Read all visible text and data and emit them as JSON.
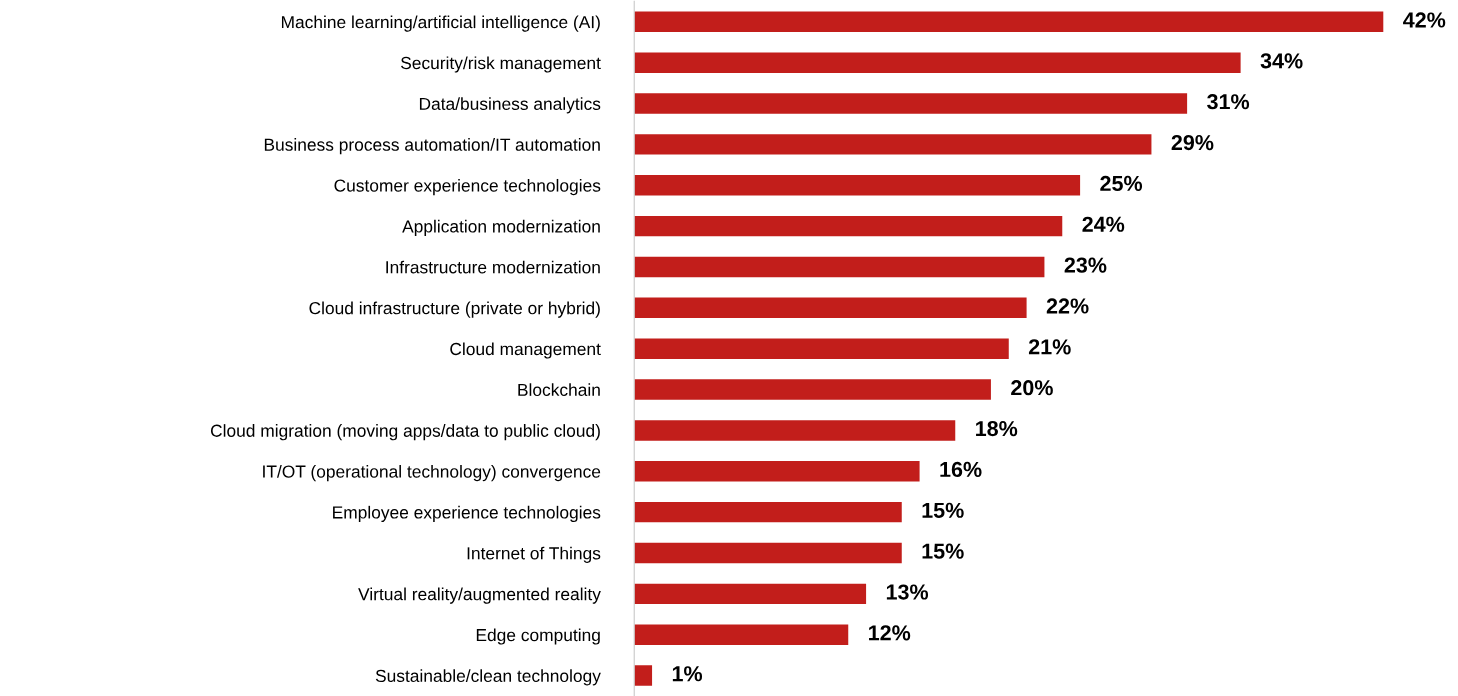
{
  "chart_data": {
    "type": "bar",
    "orientation": "horizontal",
    "categories": [
      "Machine learning/artificial intelligence (AI)",
      "Security/risk management",
      "Data/business analytics",
      "Business process automation/IT automation",
      "Customer experience technologies",
      "Application modernization",
      "Infrastructure modernization",
      "Cloud infrastructure (private or hybrid)",
      "Cloud management",
      "Blockchain",
      "Cloud migration (moving apps/data to public cloud)",
      "IT/OT (operational technology) convergence",
      "Employee experience technologies",
      "Internet of Things",
      "Virtual reality/augmented reality",
      "Edge computing",
      "Sustainable/clean technology"
    ],
    "values": [
      42,
      34,
      31,
      29,
      25,
      24,
      23,
      22,
      21,
      20,
      18,
      16,
      15,
      15,
      13,
      12,
      1
    ],
    "value_labels": [
      "42%",
      "34%",
      "31%",
      "29%",
      "25%",
      "24%",
      "23%",
      "22%",
      "21%",
      "20%",
      "18%",
      "16%",
      "15%",
      "15%",
      "13%",
      "12%",
      "1%"
    ],
    "color": "#c21e1b",
    "grid": false,
    "legend": false
  }
}
